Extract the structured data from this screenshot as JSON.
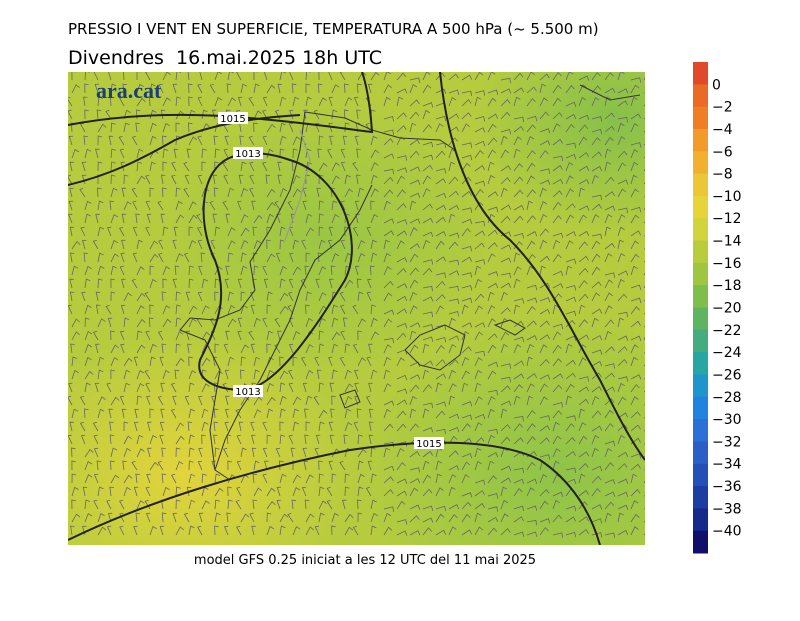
{
  "header": {
    "title": "PRESSIO I VENT EN SUPERFICIE, TEMPERATURA A 500 hPa (~ 5.500 m)",
    "subtitle": "Divendres  16.mai.2025 18h UTC"
  },
  "logo": "ara.cat",
  "footer": "model GFS 0.25 iniciat a les 12 UTC del 11 mai 2025",
  "isobars": [
    {
      "label": "1015"
    },
    {
      "label": "1013"
    },
    {
      "label": "1013"
    },
    {
      "label": "1015"
    }
  ],
  "colorbar": {
    "labels": [
      "0",
      "−2",
      "−4",
      "−6",
      "−8",
      "−10",
      "−12",
      "−14",
      "−16",
      "−18",
      "−20",
      "−22",
      "−24",
      "−26",
      "−28",
      "−30",
      "−32",
      "−34",
      "−36",
      "−38",
      "−40"
    ],
    "colors": [
      "#e04a2a",
      "#ea6a26",
      "#f07e24",
      "#f29a2a",
      "#f0b030",
      "#ecc636",
      "#e6d43a",
      "#d2d43c",
      "#b8cc3c",
      "#9ec640",
      "#80be4c",
      "#5eb460",
      "#44ac7e",
      "#28a6a4",
      "#2094cc",
      "#2282e0",
      "#2a70d6",
      "#2a60c6",
      "#2250b6",
      "#1c3ea2",
      "#162a8c",
      "#10106a"
    ]
  }
}
